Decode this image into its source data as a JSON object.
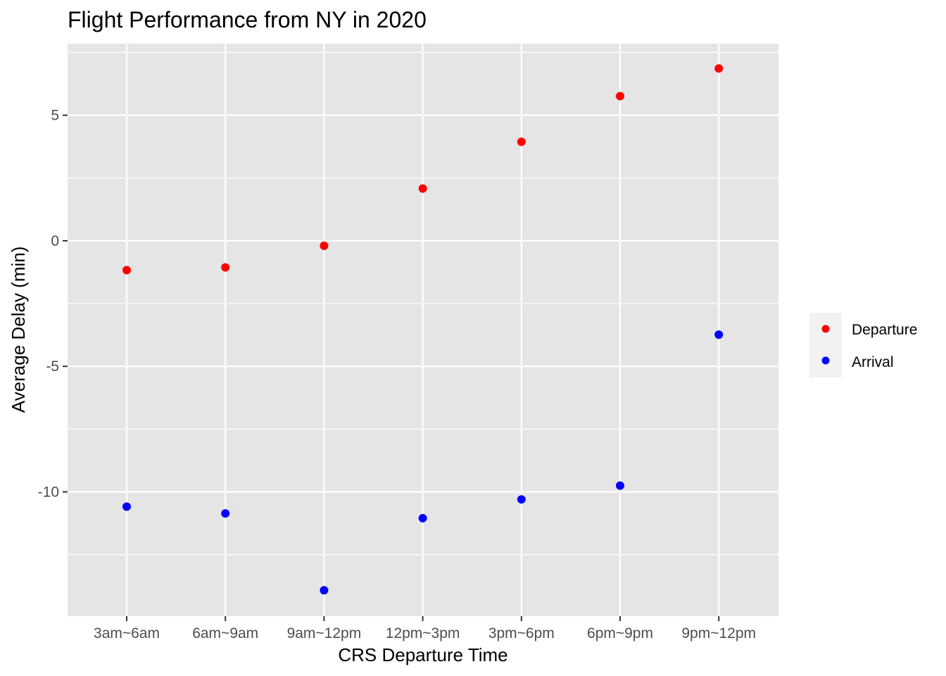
{
  "chart_data": {
    "type": "scatter",
    "title": "Flight Performance from NY in 2020",
    "xlabel": "CRS Departure Time",
    "ylabel": "Average Delay (min)",
    "categories": [
      "3am~6am",
      "6am~9am",
      "9am~12pm",
      "12pm~3pm",
      "3pm~6pm",
      "6pm~9pm",
      "9pm~12pm"
    ],
    "ylim": [
      -14.95,
      7.85
    ],
    "yticks": [
      5,
      0,
      -5,
      -10
    ],
    "grid": true,
    "legend_position": "right",
    "series": [
      {
        "name": "Departure",
        "color": "#ff0000",
        "values": [
          -1.17,
          -1.06,
          -0.2,
          2.08,
          3.94,
          5.76,
          6.86
        ]
      },
      {
        "name": "Arrival",
        "color": "#0000ff",
        "values": [
          -10.59,
          -10.86,
          -13.92,
          -11.05,
          -10.3,
          -9.75,
          -3.74
        ]
      }
    ]
  }
}
